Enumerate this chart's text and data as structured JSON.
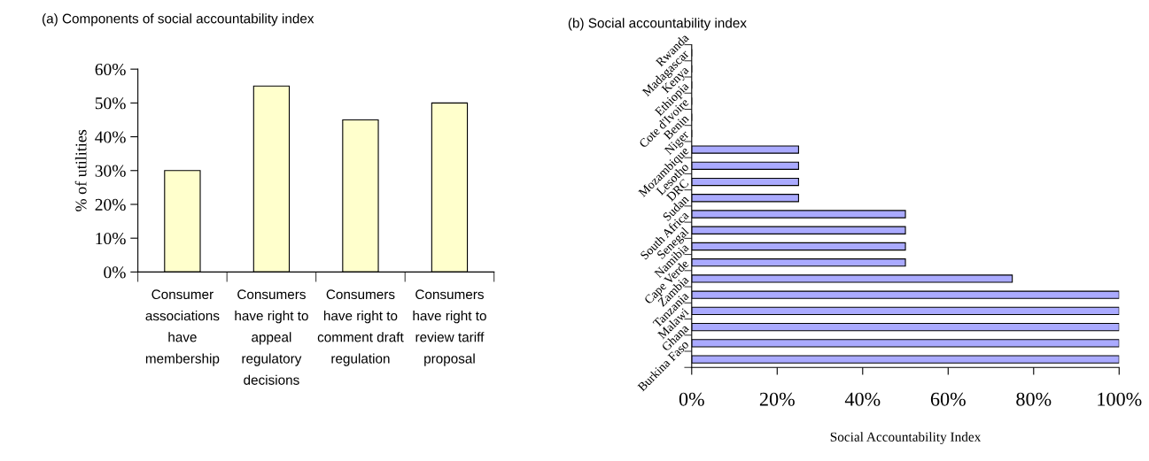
{
  "chart_data": [
    {
      "type": "bar",
      "title": "(a) Components of social accountability index",
      "ylabel": "% of utilities",
      "categories": [
        "Consumer associations have membership",
        "Consumers have right to appeal regulatory decisions",
        "Consumers have right to comment draft regulation",
        "Consumers have right to review tariff proposal"
      ],
      "values": [
        30,
        55,
        45,
        50
      ],
      "color": "#ffffcc",
      "ylim": [
        0,
        60
      ],
      "yticks": [
        {
          "value": 0,
          "label": "0%"
        },
        {
          "value": 10,
          "label": "10%"
        },
        {
          "value": 20,
          "label": "20%"
        },
        {
          "value": 30,
          "label": "30%"
        },
        {
          "value": 40,
          "label": "40%"
        },
        {
          "value": 50,
          "label": "50%"
        },
        {
          "value": 60,
          "label": "60%"
        }
      ],
      "grid": false,
      "legend": false
    },
    {
      "type": "bar",
      "orientation": "horizontal",
      "title": "(b) Social accountability index",
      "xlabel": "Social Accountability Index",
      "categories": [
        "Rwanda",
        "Madagascar",
        "Kenya",
        "Ethiopia",
        "Cote d'Ivoire",
        "Benin",
        "Niger",
        "Mozambique",
        "Lesotho",
        "DRC",
        "Sudan",
        "South Africa",
        "Senegal",
        "Namibia",
        "Cape Verde",
        "Zambia",
        "Tanzania",
        "Malawi",
        "Ghana",
        "Burkina Faso"
      ],
      "values": [
        0,
        0,
        0,
        0,
        0,
        0,
        25,
        25,
        25,
        25,
        50,
        50,
        50,
        50,
        75,
        100,
        100,
        100,
        100,
        100
      ],
      "color": "#aaaaff",
      "xlim": [
        0,
        100
      ],
      "xticks": [
        {
          "value": 0,
          "label": "0%"
        },
        {
          "value": 20,
          "label": "20%"
        },
        {
          "value": 40,
          "label": "40%"
        },
        {
          "value": 60,
          "label": "60%"
        },
        {
          "value": 80,
          "label": "80%"
        },
        {
          "value": 100,
          "label": "100%"
        }
      ],
      "grid": false,
      "legend": false
    }
  ]
}
